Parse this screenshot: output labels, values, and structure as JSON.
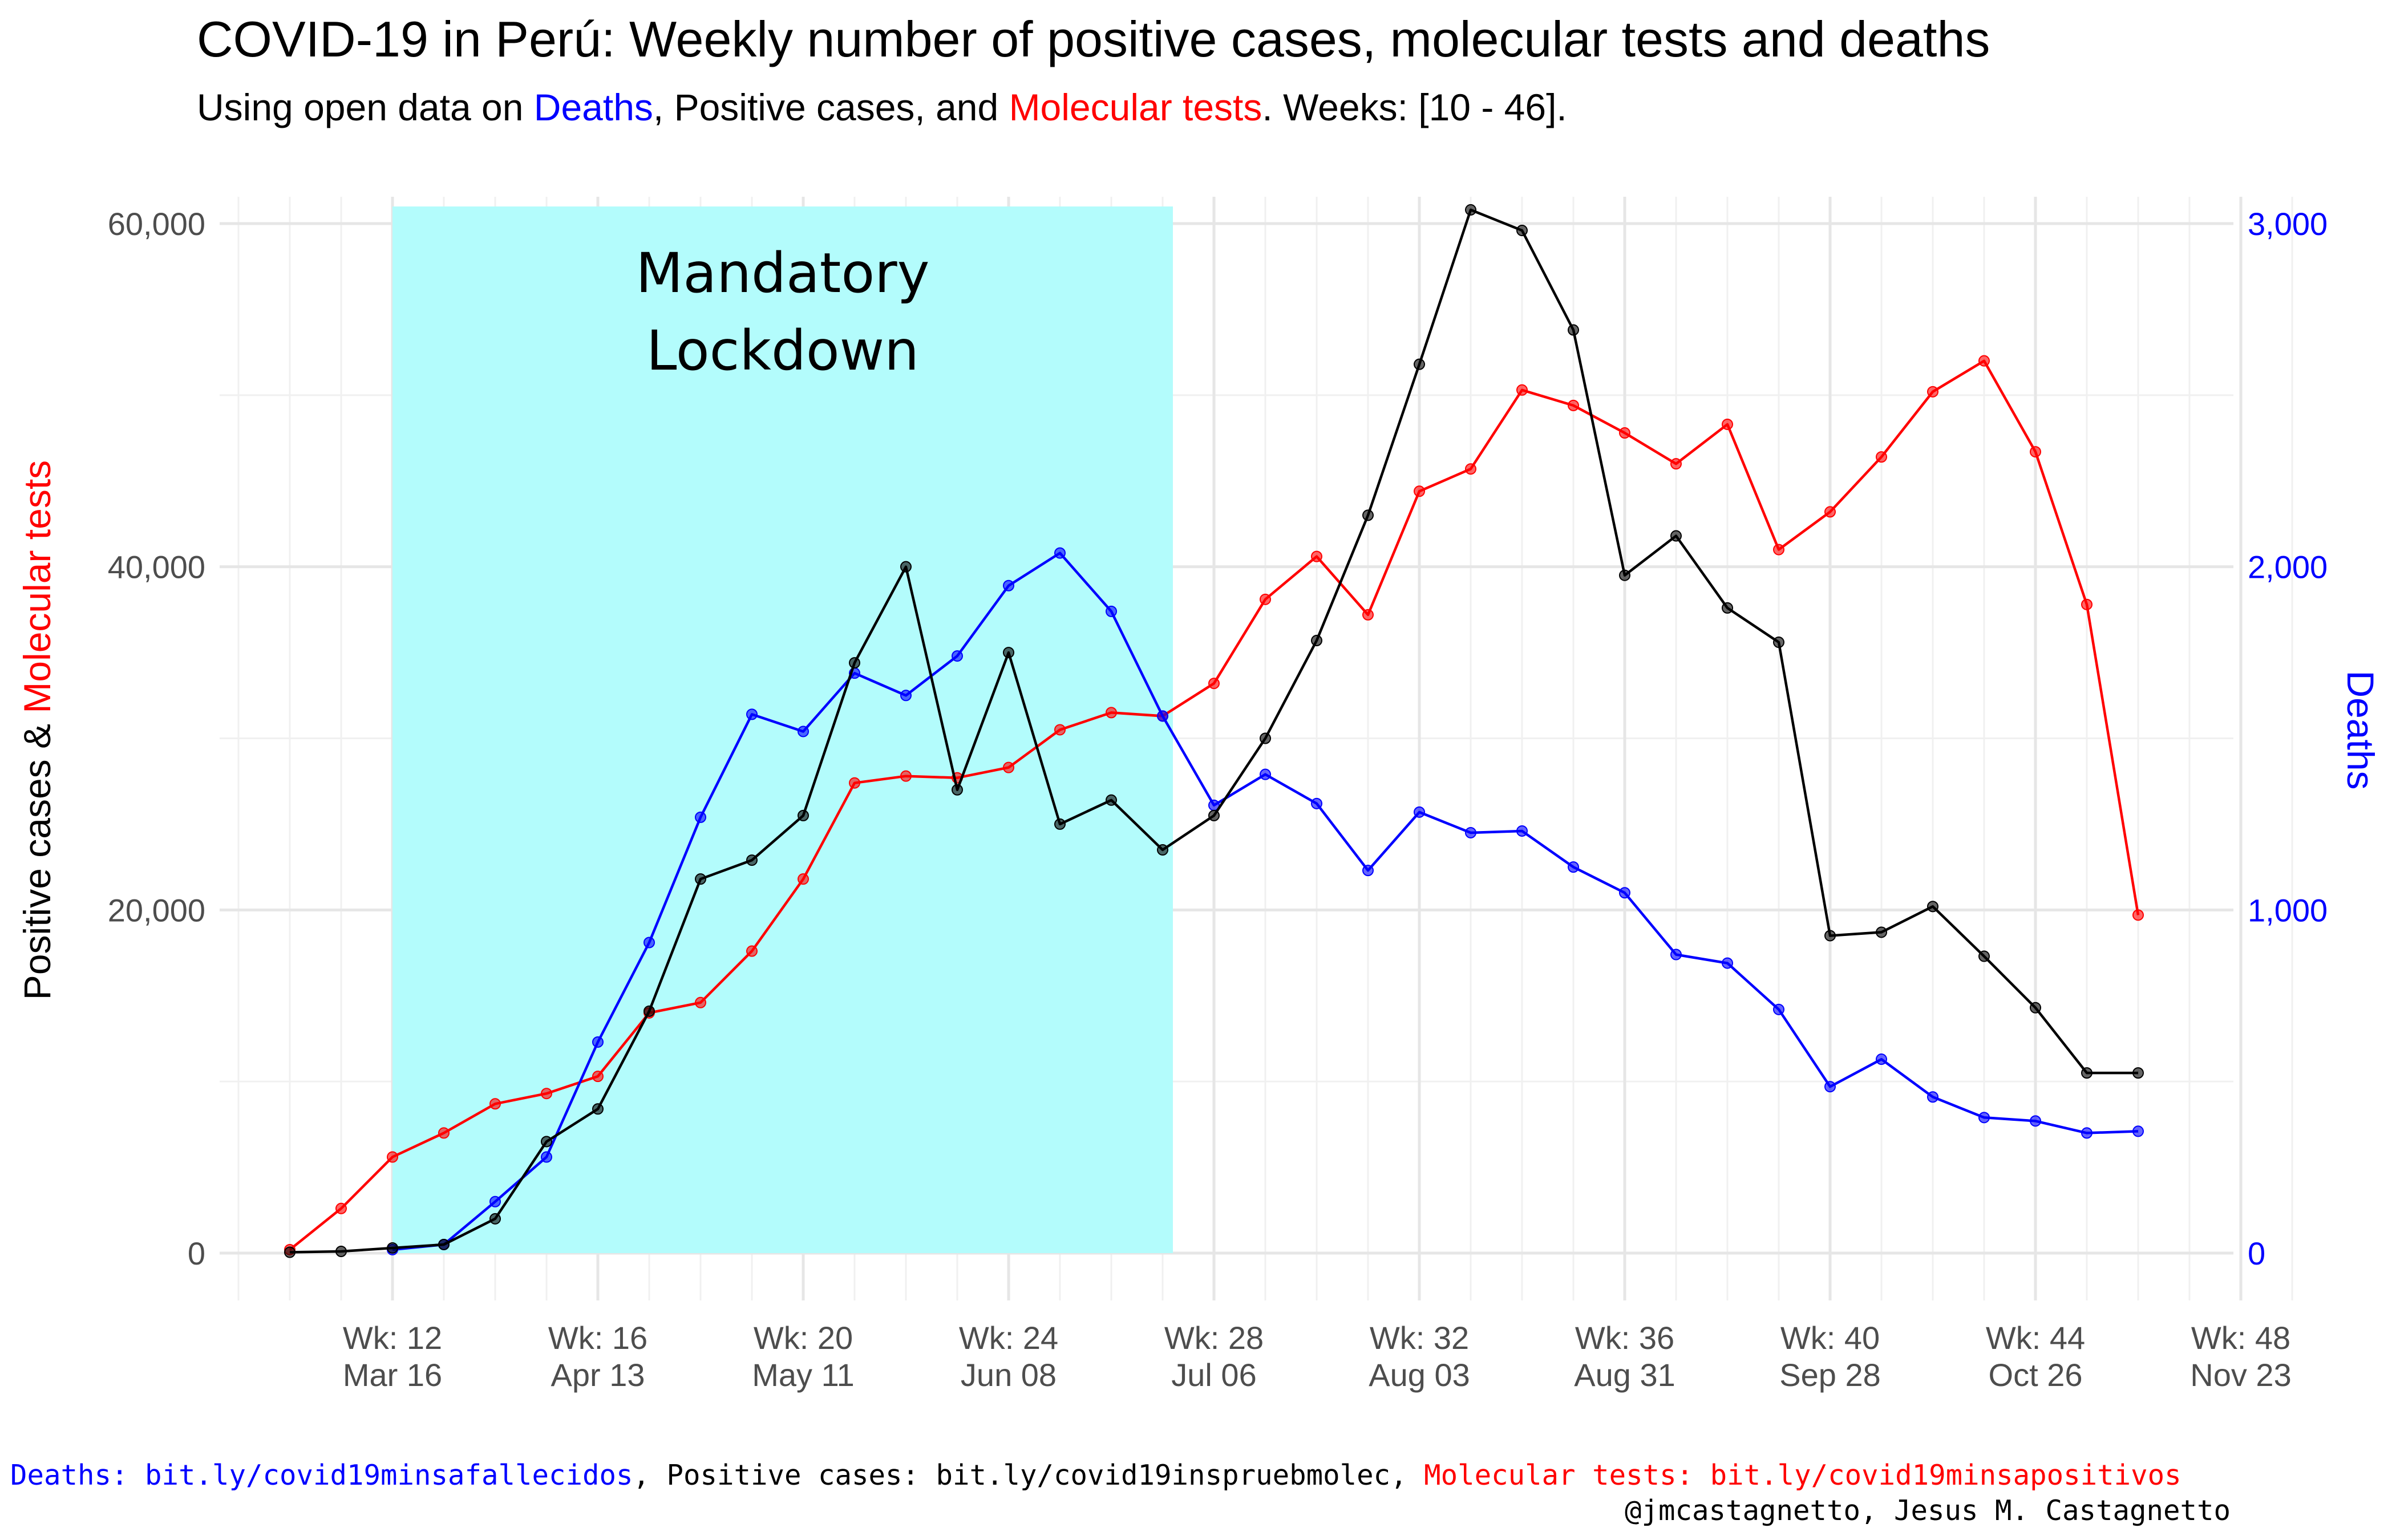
{
  "title": "COVID-19 in Perú: Weekly number of positive cases, molecular tests and deaths",
  "subtitle": {
    "pre": "Using open data on ",
    "deaths": "Deaths",
    "mid1": ", Positive cases, and ",
    "tests": "Molecular tests",
    "post": ". Weeks: [10 - 46]."
  },
  "colors": {
    "positive": "#000000",
    "tests": "#ff0000",
    "deaths": "#0000ff",
    "lockdown": "#b3fcfc"
  },
  "chart_data": {
    "type": "line",
    "x": [
      10,
      11,
      12,
      13,
      14,
      15,
      16,
      17,
      18,
      19,
      20,
      21,
      22,
      23,
      24,
      25,
      26,
      27,
      28,
      29,
      30,
      31,
      32,
      33,
      34,
      35,
      36,
      37,
      38,
      39,
      40,
      41,
      42,
      43,
      44,
      45,
      46
    ],
    "series": [
      {
        "name": "Positive cases",
        "axis": "left",
        "values": [
          50,
          100,
          300,
          500,
          2000,
          6500,
          8400,
          14100,
          21800,
          22900,
          25500,
          34400,
          40000,
          27000,
          35000,
          25000,
          26400,
          23500,
          25500,
          30000,
          35700,
          43000,
          51800,
          60800,
          59600,
          53800,
          39500,
          41800,
          37600,
          35600,
          18500,
          18700,
          20200,
          17300,
          14300,
          10500,
          10500
        ]
      },
      {
        "name": "Molecular tests",
        "axis": "left",
        "values": [
          200,
          2600,
          5600,
          7000,
          8700,
          9300,
          10300,
          14000,
          14600,
          17600,
          21800,
          27400,
          27800,
          27700,
          28300,
          30500,
          31500,
          31300,
          33200,
          38100,
          40600,
          37200,
          44400,
          45700,
          50300,
          49400,
          47800,
          46000,
          48300,
          41000,
          43200,
          46400,
          50200,
          52000,
          46700,
          37800,
          19700
        ]
      },
      {
        "name": "Deaths",
        "axis": "right",
        "x": [
          12,
          13,
          14,
          15,
          16,
          17,
          18,
          19,
          20,
          21,
          22,
          23,
          24,
          25,
          26,
          27,
          28,
          29,
          30,
          31,
          32,
          33,
          34,
          35,
          36,
          37,
          38,
          39,
          40,
          41,
          42,
          43,
          44,
          45,
          46
        ],
        "values": [
          10,
          25,
          150,
          280,
          615,
          905,
          1270,
          1570,
          1520,
          1690,
          1625,
          1740,
          1945,
          2040,
          1870,
          1565,
          1305,
          1395,
          1310,
          1115,
          1285,
          1225,
          1230,
          1125,
          1050,
          870,
          845,
          710,
          485,
          565,
          455,
          395,
          385,
          350,
          355
        ]
      }
    ],
    "ylim": [
      0,
      60000
    ],
    "y2lim": [
      0,
      3000
    ],
    "yticks": [
      "0",
      "20,000",
      "40,000",
      "60,000"
    ],
    "y2ticks": [
      "0",
      "1,000",
      "2,000",
      "3,000"
    ],
    "xticks": [
      {
        "week": 12,
        "line1": "Wk: 12",
        "line2": "Mar 16"
      },
      {
        "week": 16,
        "line1": "Wk: 16",
        "line2": "Apr 13"
      },
      {
        "week": 20,
        "line1": "Wk: 20",
        "line2": "May 11"
      },
      {
        "week": 24,
        "line1": "Wk: 24",
        "line2": "Jun 08"
      },
      {
        "week": 28,
        "line1": "Wk: 28",
        "line2": "Jul 06"
      },
      {
        "week": 32,
        "line1": "Wk: 32",
        "line2": "Aug 03"
      },
      {
        "week": 36,
        "line1": "Wk: 36",
        "line2": "Aug 31"
      },
      {
        "week": 40,
        "line1": "Wk: 40",
        "line2": "Sep 28"
      },
      {
        "week": 44,
        "line1": "Wk: 44",
        "line2": "Oct 26"
      },
      {
        "week": 48,
        "line1": "Wk: 48",
        "line2": "Nov 23"
      }
    ],
    "ylabel": {
      "part1": "Positive cases & ",
      "part2": "Molecular tests"
    },
    "y2label": "Deaths",
    "annotation": {
      "line1": "Mandatory",
      "line2": "Lockdown",
      "from_week": 12,
      "to_week": 27.2
    },
    "grid": true,
    "legend": "none"
  },
  "caption": {
    "deaths": "Deaths: bit.ly/covid19minsafallecidos",
    "sep1": ", ",
    "positive": "Positive cases: bit.ly/covid19inspruebmolec",
    "sep2": ", ",
    "tests": "Molecular tests: bit.ly/covid19minsapositivos",
    "author": "@jmcastagnetto, Jesus M. Castagnetto"
  }
}
